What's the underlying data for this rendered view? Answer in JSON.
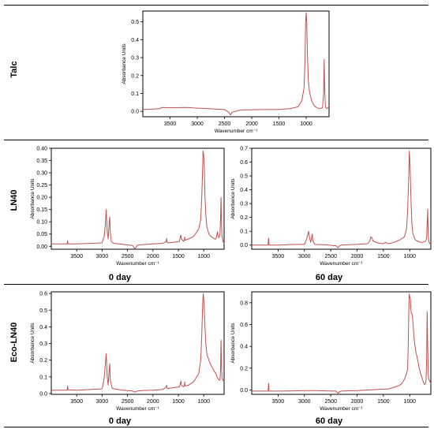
{
  "row_labels": [
    "Talc",
    "LN40",
    "Eco-LN40"
  ],
  "day_labels": [
    "0 day",
    "60 day",
    "0 day",
    "60 day"
  ],
  "chart_data": [
    {
      "type": "line",
      "panel": "Talc",
      "xlabel": "Wavenumber cm⁻¹",
      "ylabel": "Absorbance Units",
      "xlim": [
        4000,
        580
      ],
      "ylim": [
        -0.03,
        0.56
      ],
      "xticks": [
        3500,
        3000,
        2500,
        2000,
        1500,
        1000
      ],
      "yticks": [
        0.0,
        0.1,
        0.2,
        0.3,
        0.4,
        0.5
      ],
      "ytick_labels": [
        "0.0",
        "0.1",
        "0.2",
        "0.3",
        "0.4",
        "0.5"
      ],
      "line_color": "#c0504d",
      "series": [
        {
          "x": [
            4000,
            3800,
            3680,
            3660,
            3500,
            3200,
            3000,
            2800,
            2500,
            2420,
            2390,
            2360,
            2200,
            2000,
            1800,
            1500,
            1300,
            1150,
            1080,
            1040,
            1020,
            1010,
            1000,
            990,
            975,
            960,
            940,
            900,
            850,
            800,
            760,
            700,
            680,
            670,
            660,
            650,
            640,
            620,
            600,
            580
          ],
          "values": [
            0.01,
            0.013,
            0.015,
            0.022,
            0.02,
            0.022,
            0.018,
            0.015,
            0.01,
            -0.005,
            -0.02,
            -0.005,
            0.008,
            0.009,
            0.01,
            0.01,
            0.015,
            0.025,
            0.06,
            0.13,
            0.3,
            0.5,
            0.55,
            0.5,
            0.3,
            0.17,
            0.11,
            0.06,
            0.03,
            0.02,
            0.015,
            0.02,
            0.1,
            0.29,
            0.12,
            0.04,
            0.02,
            0.015,
            0.02,
            0.03
          ]
        }
      ]
    },
    {
      "type": "line",
      "panel": "LN40 0 day",
      "xlabel": "Wavenumber cm⁻¹",
      "ylabel": "Absorbance Units",
      "xlim": [
        4000,
        600
      ],
      "ylim": [
        -0.012,
        0.4
      ],
      "xticks": [
        3500,
        3000,
        2500,
        2000,
        1500,
        1000
      ],
      "yticks": [
        0.0,
        0.05,
        0.1,
        0.15,
        0.2,
        0.25,
        0.3,
        0.35,
        0.4
      ],
      "ytick_labels": [
        "0.00",
        "0.05",
        "0.10",
        "0.15",
        "0.20",
        "0.25",
        "0.30",
        "0.35",
        "0.40"
      ],
      "line_color": "#c0504d",
      "series": [
        {
          "x": [
            4000,
            3800,
            3690,
            3680,
            3670,
            3500,
            3200,
            3000,
            2960,
            2940,
            2920,
            2900,
            2880,
            2860,
            2850,
            2840,
            2820,
            2780,
            2600,
            2400,
            2360,
            2330,
            2300,
            2200,
            2000,
            1800,
            1740,
            1730,
            1720,
            1700,
            1600,
            1480,
            1460,
            1450,
            1440,
            1400,
            1380,
            1375,
            1370,
            1300,
            1200,
            1100,
            1060,
            1040,
            1020,
            1015,
            1000,
            990,
            975,
            960,
            940,
            900,
            860,
            820,
            790,
            760,
            740,
            730,
            720,
            700,
            680,
            670,
            660,
            650,
            640,
            630,
            620,
            610,
            600
          ],
          "values": [
            0.01,
            0.01,
            0.01,
            0.022,
            0.01,
            0.01,
            0.012,
            0.014,
            0.04,
            0.08,
            0.15,
            0.06,
            0.03,
            0.1,
            0.12,
            0.06,
            0.02,
            0.012,
            0.008,
            0.003,
            -0.01,
            -0.003,
            0.005,
            0.007,
            0.01,
            0.012,
            0.02,
            0.032,
            0.015,
            0.014,
            0.016,
            0.02,
            0.04,
            0.045,
            0.03,
            0.02,
            0.028,
            0.038,
            0.025,
            0.03,
            0.04,
            0.07,
            0.11,
            0.2,
            0.33,
            0.39,
            0.37,
            0.32,
            0.2,
            0.13,
            0.08,
            0.05,
            0.04,
            0.035,
            0.03,
            0.03,
            0.05,
            0.06,
            0.04,
            0.035,
            0.05,
            0.11,
            0.2,
            0.08,
            0.04,
            0.03,
            0.02,
            0.015,
            0.01
          ]
        }
      ]
    },
    {
      "type": "line",
      "panel": "LN40 60 day",
      "xlabel": "Wavenumber cm⁻¹",
      "ylabel": "Absorbance Units",
      "xlim": [
        4000,
        600
      ],
      "ylim": [
        -0.03,
        0.7
      ],
      "xticks": [
        3500,
        3000,
        2500,
        2000,
        1500,
        1000
      ],
      "yticks": [
        0.0,
        0.1,
        0.2,
        0.3,
        0.4,
        0.5,
        0.6,
        0.7
      ],
      "ytick_labels": [
        "0.0",
        "0.1",
        "0.2",
        "0.3",
        "0.4",
        "0.5",
        "0.6",
        "0.7"
      ],
      "line_color": "#c0504d",
      "series": [
        {
          "x": [
            4000,
            3800,
            3690,
            3680,
            3670,
            3500,
            3200,
            3000,
            2960,
            2920,
            2900,
            2880,
            2860,
            2850,
            2840,
            2800,
            2600,
            2400,
            2360,
            2330,
            2300,
            2200,
            2000,
            1800,
            1760,
            1740,
            1720,
            1700,
            1600,
            1500,
            1460,
            1440,
            1400,
            1300,
            1200,
            1100,
            1060,
            1040,
            1020,
            1010,
            1000,
            990,
            975,
            960,
            940,
            900,
            860,
            800,
            760,
            720,
            700,
            680,
            670,
            660,
            650,
            640,
            620,
            600
          ],
          "values": [
            0.0,
            0.0,
            0.0,
            0.05,
            0.0,
            0.0,
            0.005,
            0.005,
            0.04,
            0.1,
            0.05,
            0.02,
            0.06,
            0.08,
            0.03,
            0.005,
            0.002,
            -0.005,
            -0.02,
            -0.005,
            0.0,
            0.002,
            0.005,
            0.01,
            0.03,
            0.06,
            0.055,
            0.03,
            0.015,
            0.01,
            0.02,
            0.015,
            0.01,
            0.02,
            0.035,
            0.06,
            0.12,
            0.25,
            0.5,
            0.68,
            0.62,
            0.5,
            0.3,
            0.15,
            0.08,
            0.04,
            0.03,
            0.02,
            0.02,
            0.025,
            0.03,
            0.05,
            0.15,
            0.26,
            0.08,
            0.03,
            0.01,
            0.005
          ]
        }
      ]
    },
    {
      "type": "line",
      "panel": "Eco-LN40 0 day",
      "xlabel": "Wavenumber cm⁻¹",
      "ylabel": "Absorbance Units",
      "xlim": [
        4000,
        600
      ],
      "ylim": [
        -0.005,
        0.61
      ],
      "xticks": [
        3500,
        3000,
        2500,
        2000,
        1500,
        1000
      ],
      "yticks": [
        0.0,
        0.1,
        0.2,
        0.3,
        0.4,
        0.5,
        0.6
      ],
      "ytick_labels": [
        "0.0",
        "0.1",
        "0.2",
        "0.3",
        "0.4",
        "0.5",
        "0.6"
      ],
      "line_color": "#c0504d",
      "series": [
        {
          "x": [
            4000,
            3800,
            3690,
            3680,
            3670,
            3500,
            3200,
            3000,
            2960,
            2920,
            2900,
            2880,
            2860,
            2850,
            2840,
            2800,
            2600,
            2400,
            2360,
            2330,
            2300,
            2200,
            2000,
            1800,
            1740,
            1730,
            1720,
            1700,
            1600,
            1480,
            1460,
            1450,
            1440,
            1400,
            1380,
            1375,
            1370,
            1300,
            1200,
            1100,
            1060,
            1040,
            1020,
            1010,
            1000,
            990,
            975,
            960,
            940,
            900,
            860,
            820,
            790,
            760,
            740,
            720,
            700,
            680,
            670,
            660,
            650,
            640,
            620,
            600
          ],
          "values": [
            0.02,
            0.02,
            0.02,
            0.045,
            0.022,
            0.02,
            0.025,
            0.028,
            0.09,
            0.24,
            0.1,
            0.05,
            0.15,
            0.18,
            0.08,
            0.03,
            0.02,
            0.015,
            0.008,
            0.013,
            0.015,
            0.018,
            0.02,
            0.025,
            0.04,
            0.05,
            0.03,
            0.03,
            0.035,
            0.04,
            0.06,
            0.075,
            0.05,
            0.04,
            0.05,
            0.07,
            0.045,
            0.05,
            0.07,
            0.12,
            0.2,
            0.35,
            0.55,
            0.6,
            0.57,
            0.5,
            0.4,
            0.3,
            0.24,
            0.2,
            0.17,
            0.15,
            0.13,
            0.12,
            0.1,
            0.09,
            0.08,
            0.08,
            0.14,
            0.32,
            0.15,
            0.09,
            0.08,
            0.07
          ]
        }
      ]
    },
    {
      "type": "line",
      "panel": "Eco-LN40 60 day",
      "xlabel": "Wavenumber cm⁻¹",
      "ylabel": "Absorbance Units",
      "xlim": [
        4000,
        600
      ],
      "ylim": [
        -0.04,
        0.9
      ],
      "xticks": [
        3500,
        3000,
        2500,
        2000,
        1500,
        1000
      ],
      "yticks": [
        0.0,
        0.2,
        0.4,
        0.6,
        0.8
      ],
      "ytick_labels": [
        "0.0",
        "0.2",
        "0.4",
        "0.6",
        "0.8"
      ],
      "line_color": "#c0504d",
      "series": [
        {
          "x": [
            4000,
            3800,
            3690,
            3680,
            3670,
            3500,
            3200,
            3000,
            2800,
            2600,
            2400,
            2360,
            2330,
            2300,
            2200,
            2000,
            1800,
            1600,
            1400,
            1200,
            1150,
            1100,
            1080,
            1060,
            1040,
            1030,
            1020,
            1010,
            1000,
            990,
            980,
            970,
            960,
            950,
            940,
            930,
            920,
            900,
            880,
            860,
            840,
            820,
            800,
            780,
            760,
            740,
            720,
            700,
            690,
            680,
            670,
            660,
            650,
            640,
            620,
            600
          ],
          "values": [
            -0.01,
            -0.01,
            -0.01,
            0.06,
            -0.01,
            -0.01,
            -0.008,
            -0.006,
            -0.005,
            -0.008,
            -0.01,
            -0.03,
            -0.015,
            -0.01,
            -0.008,
            -0.005,
            0.0,
            0.005,
            0.01,
            0.04,
            0.06,
            0.1,
            0.13,
            0.15,
            0.2,
            0.4,
            0.7,
            0.88,
            0.85,
            0.84,
            0.75,
            0.7,
            0.7,
            0.68,
            0.62,
            0.55,
            0.48,
            0.4,
            0.34,
            0.3,
            0.25,
            0.2,
            0.16,
            0.13,
            0.1,
            0.07,
            0.05,
            0.06,
            0.1,
            0.3,
            0.72,
            0.4,
            0.15,
            0.1,
            0.08,
            0.06
          ]
        }
      ]
    }
  ]
}
